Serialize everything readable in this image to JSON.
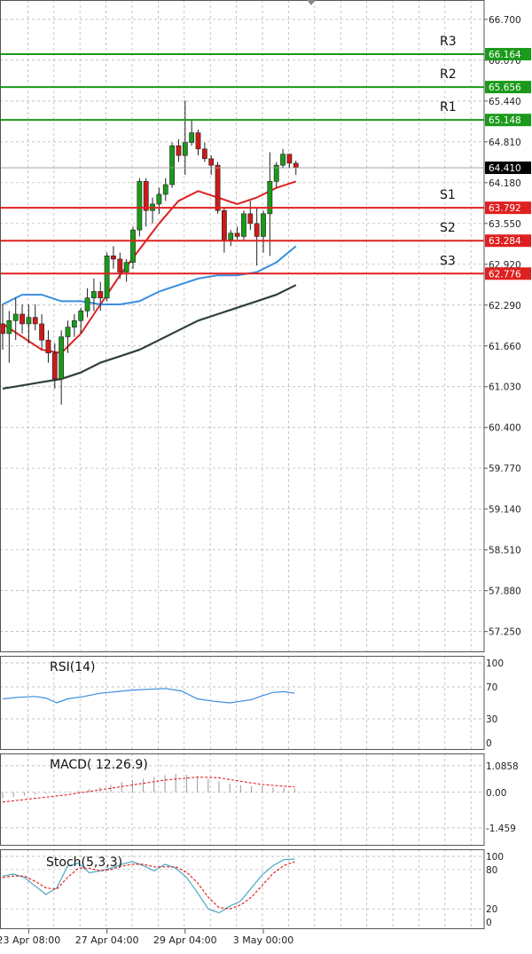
{
  "chart_data": [
    {
      "type": "candlestick",
      "panel": "price",
      "ylim": [
        56.93,
        67.0
      ],
      "y_ticks": [
        "66.700",
        "66.070",
        "65.440",
        "64.810",
        "64.180",
        "63.550",
        "62.920",
        "62.290",
        "61.660",
        "61.030",
        "60.400",
        "59.770",
        "59.140",
        "58.510",
        "57.880",
        "57.250"
      ],
      "current_price": {
        "label": "64.410",
        "value": 64.41
      },
      "levels": [
        {
          "name": "R3",
          "label": "66.164",
          "value": 66.164,
          "color": "#1a9a1a"
        },
        {
          "name": "R2",
          "label": "65.656",
          "value": 65.656,
          "color": "#1a9a1a"
        },
        {
          "name": "R1",
          "label": "65.148",
          "value": 65.148,
          "color": "#1a9a1a"
        },
        {
          "name": "S1",
          "label": "63.792",
          "value": 63.792,
          "color": "#e02020"
        },
        {
          "name": "S2",
          "label": "63.284",
          "value": 63.284,
          "color": "#e02020"
        },
        {
          "name": "S3",
          "label": "62.776",
          "value": 62.776,
          "color": "#e02020"
        }
      ],
      "candles": [
        {
          "o": 62.0,
          "h": 62.3,
          "l": 61.6,
          "c": 61.85
        },
        {
          "o": 61.85,
          "h": 62.2,
          "l": 61.4,
          "c": 62.05
        },
        {
          "o": 62.05,
          "h": 62.4,
          "l": 61.75,
          "c": 62.15
        },
        {
          "o": 62.15,
          "h": 62.3,
          "l": 61.85,
          "c": 62.0
        },
        {
          "o": 62.0,
          "h": 62.3,
          "l": 61.7,
          "c": 62.1
        },
        {
          "o": 62.1,
          "h": 62.3,
          "l": 61.9,
          "c": 62.0
        },
        {
          "o": 62.0,
          "h": 62.15,
          "l": 61.6,
          "c": 61.75
        },
        {
          "o": 61.75,
          "h": 61.9,
          "l": 61.4,
          "c": 61.55
        },
        {
          "o": 61.55,
          "h": 61.7,
          "l": 61.0,
          "c": 61.15
        },
        {
          "o": 61.15,
          "h": 61.9,
          "l": 60.75,
          "c": 61.8
        },
        {
          "o": 61.8,
          "h": 62.05,
          "l": 61.55,
          "c": 61.95
        },
        {
          "o": 61.95,
          "h": 62.15,
          "l": 61.8,
          "c": 62.05
        },
        {
          "o": 62.05,
          "h": 62.25,
          "l": 61.85,
          "c": 62.2
        },
        {
          "o": 62.2,
          "h": 62.55,
          "l": 62.1,
          "c": 62.4
        },
        {
          "o": 62.4,
          "h": 62.7,
          "l": 62.2,
          "c": 62.5
        },
        {
          "o": 62.5,
          "h": 62.65,
          "l": 62.2,
          "c": 62.4
        },
        {
          "o": 62.4,
          "h": 63.1,
          "l": 62.35,
          "c": 63.05
        },
        {
          "o": 63.05,
          "h": 63.2,
          "l": 62.85,
          "c": 63.0
        },
        {
          "o": 63.0,
          "h": 63.1,
          "l": 62.7,
          "c": 62.8
        },
        {
          "o": 62.8,
          "h": 63.0,
          "l": 62.65,
          "c": 62.95
        },
        {
          "o": 62.95,
          "h": 63.5,
          "l": 62.85,
          "c": 63.45
        },
        {
          "o": 63.45,
          "h": 64.25,
          "l": 63.35,
          "c": 64.2
        },
        {
          "o": 64.2,
          "h": 64.25,
          "l": 63.5,
          "c": 63.75
        },
        {
          "o": 63.75,
          "h": 63.95,
          "l": 63.55,
          "c": 63.85
        },
        {
          "o": 63.85,
          "h": 64.1,
          "l": 63.7,
          "c": 64.0
        },
        {
          "o": 64.0,
          "h": 64.25,
          "l": 63.9,
          "c": 64.15
        },
        {
          "o": 64.15,
          "h": 64.8,
          "l": 64.1,
          "c": 64.75
        },
        {
          "o": 64.75,
          "h": 64.85,
          "l": 64.5,
          "c": 64.6
        },
        {
          "o": 64.6,
          "h": 65.45,
          "l": 64.3,
          "c": 64.8
        },
        {
          "o": 64.8,
          "h": 65.15,
          "l": 64.75,
          "c": 64.95
        },
        {
          "o": 64.95,
          "h": 65.0,
          "l": 64.6,
          "c": 64.7
        },
        {
          "o": 64.7,
          "h": 64.8,
          "l": 64.5,
          "c": 64.55
        },
        {
          "o": 64.55,
          "h": 64.6,
          "l": 64.3,
          "c": 64.45
        },
        {
          "o": 64.45,
          "h": 64.5,
          "l": 63.7,
          "c": 63.75
        },
        {
          "o": 63.75,
          "h": 63.8,
          "l": 63.1,
          "c": 63.3
        },
        {
          "o": 63.3,
          "h": 63.45,
          "l": 63.2,
          "c": 63.4
        },
        {
          "o": 63.4,
          "h": 63.5,
          "l": 63.3,
          "c": 63.35
        },
        {
          "o": 63.35,
          "h": 63.75,
          "l": 63.3,
          "c": 63.7
        },
        {
          "o": 63.7,
          "h": 63.9,
          "l": 63.45,
          "c": 63.55
        },
        {
          "o": 63.55,
          "h": 63.8,
          "l": 62.9,
          "c": 63.35
        },
        {
          "o": 63.35,
          "h": 63.75,
          "l": 63.1,
          "c": 63.7
        },
        {
          "o": 63.7,
          "h": 64.65,
          "l": 63.05,
          "c": 64.2
        },
        {
          "o": 64.2,
          "h": 64.5,
          "l": 64.1,
          "c": 64.45
        },
        {
          "o": 64.45,
          "h": 64.7,
          "l": 64.4,
          "c": 64.62
        },
        {
          "o": 64.62,
          "h": 64.62,
          "l": 64.4,
          "c": 64.48
        },
        {
          "o": 64.48,
          "h": 64.52,
          "l": 64.3,
          "c": 64.41
        }
      ],
      "series": [
        {
          "type": "line",
          "color": "#e02020",
          "values": [
            [
              0,
              62.0
            ],
            [
              3,
              61.8
            ],
            [
              6,
              61.6
            ],
            [
              9,
              61.55
            ],
            [
              12,
              61.85
            ],
            [
              15,
              62.3
            ],
            [
              18,
              62.75
            ],
            [
              21,
              63.15
            ],
            [
              24,
              63.55
            ],
            [
              27,
              63.9
            ],
            [
              30,
              64.05
            ],
            [
              33,
              63.95
            ],
            [
              36,
              63.85
            ],
            [
              39,
              63.95
            ],
            [
              42,
              64.1
            ],
            [
              45,
              64.2
            ]
          ]
        },
        {
          "type": "line",
          "color": "#3a8de0",
          "values": [
            [
              0,
              62.3
            ],
            [
              3,
              62.45
            ],
            [
              6,
              62.45
            ],
            [
              9,
              62.35
            ],
            [
              12,
              62.35
            ],
            [
              15,
              62.3
            ],
            [
              18,
              62.3
            ],
            [
              21,
              62.35
            ],
            [
              24,
              62.5
            ],
            [
              27,
              62.6
            ],
            [
              30,
              62.7
            ],
            [
              33,
              62.75
            ],
            [
              36,
              62.75
            ],
            [
              39,
              62.8
            ],
            [
              42,
              62.95
            ],
            [
              45,
              63.2
            ]
          ]
        },
        {
          "type": "line",
          "color": "#2f3f3f",
          "values": [
            [
              0,
              61.0
            ],
            [
              3,
              61.05
            ],
            [
              6,
              61.1
            ],
            [
              9,
              61.15
            ],
            [
              12,
              61.25
            ],
            [
              15,
              61.4
            ],
            [
              18,
              61.5
            ],
            [
              21,
              61.6
            ],
            [
              24,
              61.75
            ],
            [
              27,
              61.9
            ],
            [
              30,
              62.05
            ],
            [
              33,
              62.15
            ],
            [
              36,
              62.25
            ],
            [
              39,
              62.35
            ],
            [
              42,
              62.45
            ],
            [
              45,
              62.6
            ]
          ]
        }
      ]
    },
    {
      "type": "line",
      "panel": "indicator",
      "title": "RSI(14)",
      "ylim": [
        0,
        100
      ],
      "y_ticks": [
        "100",
        "70",
        "30",
        "0"
      ],
      "series": [
        {
          "color": "#3a8de0",
          "values": [
            [
              0,
              55
            ],
            [
              3,
              57
            ],
            [
              6,
              58
            ],
            [
              8,
              56
            ],
            [
              10,
              50
            ],
            [
              12,
              55
            ],
            [
              15,
              58
            ],
            [
              18,
              62
            ],
            [
              21,
              64
            ],
            [
              24,
              66
            ],
            [
              27,
              67
            ],
            [
              30,
              68
            ],
            [
              33,
              65
            ],
            [
              36,
              55
            ],
            [
              39,
              52
            ],
            [
              42,
              50
            ],
            [
              44,
              52
            ],
            [
              46,
              54
            ],
            [
              48,
              59
            ],
            [
              50,
              63
            ],
            [
              52,
              64
            ],
            [
              54,
              62
            ]
          ]
        }
      ]
    },
    {
      "type": "bar",
      "panel": "indicator",
      "title": "MACD( 12.26.9)",
      "ylim": [
        -1.9,
        1.3
      ],
      "y_ticks": [
        "1.0858",
        "0.00",
        "-1.459"
      ],
      "series": [
        {
          "type": "bar",
          "color": "#999999",
          "values": [
            [
              0,
              -0.25
            ],
            [
              2,
              -0.2
            ],
            [
              4,
              -0.15
            ],
            [
              6,
              -0.1
            ],
            [
              8,
              -0.06
            ],
            [
              10,
              -0.02
            ],
            [
              12,
              0.02
            ],
            [
              14,
              0.07
            ],
            [
              16,
              0.12
            ],
            [
              18,
              0.2
            ],
            [
              20,
              0.3
            ],
            [
              22,
              0.42
            ],
            [
              24,
              0.5
            ],
            [
              26,
              0.55
            ],
            [
              28,
              0.62
            ],
            [
              30,
              0.7
            ],
            [
              32,
              0.75
            ],
            [
              34,
              0.72
            ],
            [
              36,
              0.65
            ],
            [
              38,
              0.55
            ],
            [
              40,
              0.45
            ],
            [
              42,
              0.35
            ],
            [
              44,
              0.28
            ],
            [
              46,
              0.25
            ],
            [
              48,
              0.24
            ],
            [
              50,
              0.2
            ],
            [
              52,
              0.18
            ],
            [
              54,
              0.16
            ]
          ]
        },
        {
          "type": "line",
          "color": "#e02020",
          "values": [
            [
              0,
              -0.4
            ],
            [
              6,
              -0.25
            ],
            [
              12,
              -0.1
            ],
            [
              18,
              0.1
            ],
            [
              24,
              0.3
            ],
            [
              30,
              0.5
            ],
            [
              36,
              0.62
            ],
            [
              40,
              0.6
            ],
            [
              44,
              0.45
            ],
            [
              48,
              0.32
            ],
            [
              52,
              0.25
            ],
            [
              54,
              0.22
            ]
          ]
        }
      ]
    },
    {
      "type": "line",
      "panel": "indicator",
      "title": "Stoch(5,3,3)",
      "ylim": [
        0,
        100
      ],
      "y_ticks": [
        "100",
        "80",
        "20",
        "0"
      ],
      "series": [
        {
          "color": "#4aa8c0",
          "values": [
            [
              0,
              70
            ],
            [
              2,
              73
            ],
            [
              4,
              68
            ],
            [
              6,
              55
            ],
            [
              8,
              42
            ],
            [
              10,
              52
            ],
            [
              12,
              85
            ],
            [
              14,
              90
            ],
            [
              16,
              75
            ],
            [
              18,
              78
            ],
            [
              20,
              82
            ],
            [
              22,
              88
            ],
            [
              24,
              92
            ],
            [
              26,
              86
            ],
            [
              28,
              78
            ],
            [
              30,
              88
            ],
            [
              32,
              82
            ],
            [
              34,
              68
            ],
            [
              36,
              45
            ],
            [
              38,
              20
            ],
            [
              40,
              14
            ],
            [
              42,
              24
            ],
            [
              44,
              32
            ],
            [
              46,
              52
            ],
            [
              48,
              72
            ],
            [
              50,
              86
            ],
            [
              52,
              95
            ],
            [
              54,
              96
            ]
          ]
        },
        {
          "color": "#e02020",
          "dashed": true,
          "values": [
            [
              0,
              68
            ],
            [
              2,
              70
            ],
            [
              4,
              70
            ],
            [
              6,
              62
            ],
            [
              8,
              52
            ],
            [
              10,
              50
            ],
            [
              12,
              68
            ],
            [
              14,
              82
            ],
            [
              16,
              82
            ],
            [
              18,
              78
            ],
            [
              20,
              80
            ],
            [
              22,
              85
            ],
            [
              24,
              88
            ],
            [
              26,
              88
            ],
            [
              28,
              84
            ],
            [
              30,
              84
            ],
            [
              32,
              84
            ],
            [
              34,
              76
            ],
            [
              36,
              60
            ],
            [
              38,
              38
            ],
            [
              40,
              22
            ],
            [
              42,
              20
            ],
            [
              44,
              26
            ],
            [
              46,
              38
            ],
            [
              48,
              56
            ],
            [
              50,
              74
            ],
            [
              52,
              86
            ],
            [
              54,
              92
            ]
          ]
        }
      ]
    }
  ],
  "x_axis": {
    "labels": [
      {
        "index": 4,
        "text": "23 Apr 08:00"
      },
      {
        "index": 16,
        "text": "27 Apr 04:00"
      },
      {
        "index": 28,
        "text": "29 Apr 04:00"
      },
      {
        "index": 40,
        "text": "3 May 00:00"
      }
    ]
  },
  "colors": {
    "bull_candle": "#1a9a1a",
    "bear_candle": "#cc1a1a",
    "grid": "#b0b0b0",
    "frame": "#555555",
    "axis_text": "#222222"
  }
}
